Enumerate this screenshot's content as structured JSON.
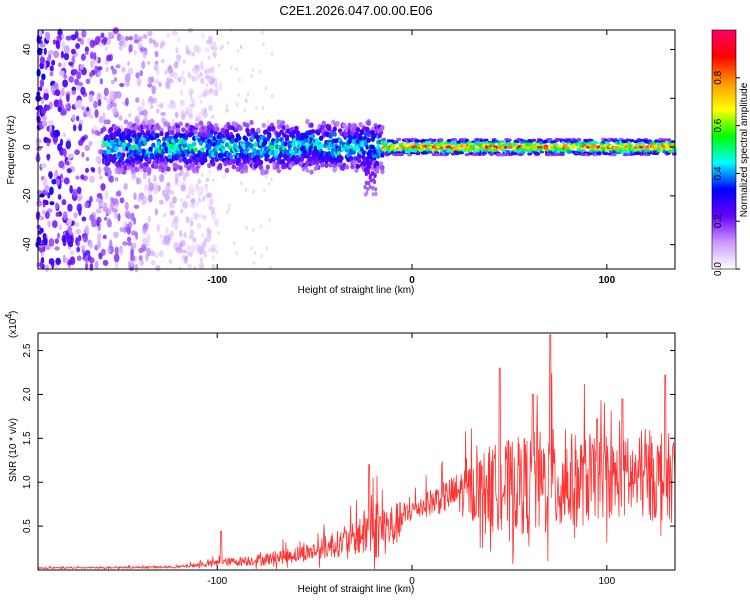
{
  "title": "C2E1.2026.047.00.00.E06",
  "chart_data": [
    {
      "type": "heatmap",
      "xlabel": "Height of straight line (km)",
      "ylabel": "Frequency (Hz)",
      "xlim": [
        -192,
        135
      ],
      "ylim": [
        -50,
        48
      ],
      "xticks": [
        -100,
        0,
        100
      ],
      "xtick_labels": [
        "-100",
        "0",
        "100"
      ],
      "yticks": [
        -40,
        -20,
        0,
        20,
        40
      ],
      "ytick_labels": [
        "-40",
        "-20",
        "0",
        "20",
        "40"
      ],
      "colorbar": {
        "label": "Normalized spectral amplitude",
        "range": [
          0,
          1
        ],
        "ticks": [
          0.0,
          0.2,
          0.4,
          0.6,
          0.8
        ],
        "tick_labels": [
          "0.0",
          "0.2",
          "0.4",
          "0.6",
          "0.8"
        ],
        "colors": [
          "#ffffff",
          "#cc99ff",
          "#6600ff",
          "#0000ff",
          "#00ffff",
          "#00ff00",
          "#ffff00",
          "#ff9900",
          "#ff0000",
          "#ff0066"
        ]
      },
      "description_band": {
        "noise_region_x": [
          -192,
          -120
        ],
        "strong_band_center_hz": 0,
        "band_start_x": -158
      }
    },
    {
      "type": "line",
      "xlabel": "Height of straight line (km)",
      "ylabel": "SNR (10 * v/v)",
      "scale_note": "(x10",
      "scale_exp": "4",
      "xlim": [
        -192,
        135
      ],
      "ylim": [
        0,
        2.7
      ],
      "xticks": [
        -100,
        0,
        100
      ],
      "xtick_labels": [
        "-100",
        "0",
        "100"
      ],
      "yticks": [
        0.5,
        1.0,
        1.5,
        2.0,
        2.5
      ],
      "ytick_labels": [
        "0.5",
        "1.0",
        "1.5",
        "2.0",
        "2.5"
      ],
      "color": "#ff3333",
      "envelope": [
        {
          "x": -192,
          "base": 0.02,
          "amp": 0.02
        },
        {
          "x": -120,
          "base": 0.03,
          "amp": 0.03
        },
        {
          "x": -100,
          "base": 0.07,
          "amp": 0.1
        },
        {
          "x": -75,
          "base": 0.1,
          "amp": 0.18
        },
        {
          "x": -50,
          "base": 0.18,
          "amp": 0.28
        },
        {
          "x": -30,
          "base": 0.3,
          "amp": 0.45
        },
        {
          "x": -20,
          "base": 0.35,
          "amp": 0.9
        },
        {
          "x": -10,
          "base": 0.4,
          "amp": 0.7
        },
        {
          "x": 0,
          "base": 0.65,
          "amp": 0.3
        },
        {
          "x": 20,
          "base": 0.8,
          "amp": 0.5
        },
        {
          "x": 40,
          "base": 0.8,
          "amp": 1.2
        },
        {
          "x": 70,
          "base": 0.8,
          "amp": 1.6
        },
        {
          "x": 100,
          "base": 0.9,
          "amp": 1.1
        },
        {
          "x": 135,
          "base": 0.9,
          "amp": 1.3
        }
      ],
      "peaks": [
        {
          "x": 45,
          "y": 2.3
        },
        {
          "x": 71,
          "y": 2.68
        },
        {
          "x": 130,
          "y": 2.22
        },
        {
          "x": 62,
          "y": 2.0
        },
        {
          "x": 108,
          "y": 1.95
        },
        {
          "x": 95,
          "y": 1.72
        },
        {
          "x": -22,
          "y": 1.2
        },
        {
          "x": -98,
          "y": 0.44
        }
      ]
    }
  ]
}
